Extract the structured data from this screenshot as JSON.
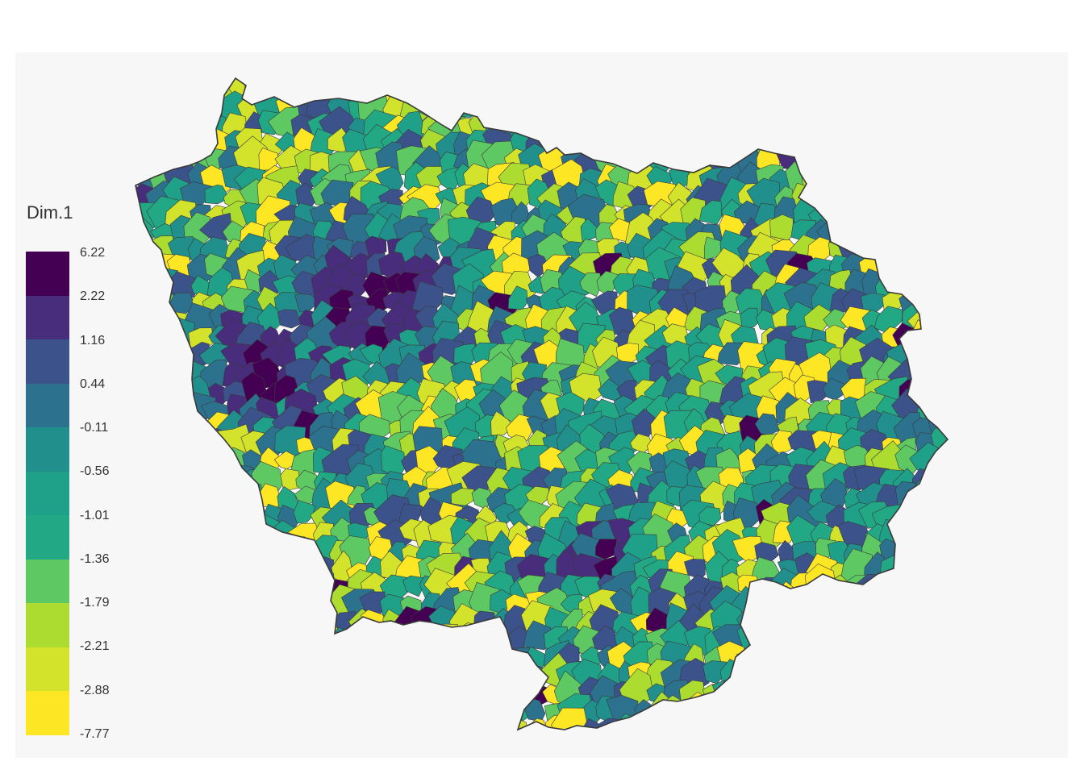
{
  "legend": {
    "title": "Dim.1",
    "breaks": [
      "6.22",
      "2.22",
      "1.16",
      "0.44",
      "-0.11",
      "-0.56",
      "-1.01",
      "-1.36",
      "-1.79",
      "-2.21",
      "-2.88",
      "-7.77"
    ],
    "colors": [
      "#440154",
      "#472d7b",
      "#3b528b",
      "#2c728e",
      "#21908d",
      "#1fa088",
      "#22a884",
      "#5ec962",
      "#addc30",
      "#d3e22a",
      "#fde725"
    ]
  },
  "map": {
    "region": "Île-de-France communes choropleth",
    "variable": "Dim.1",
    "border_color": "#3a3a3a"
  }
}
